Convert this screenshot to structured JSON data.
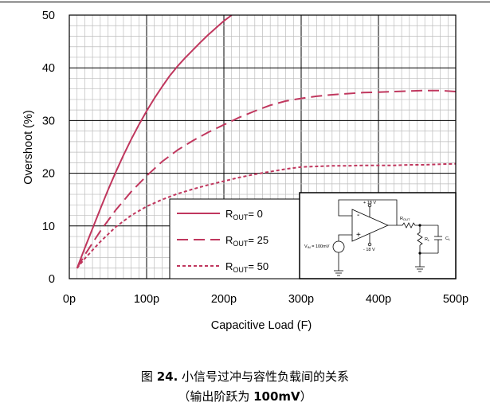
{
  "chart_data": {
    "type": "line",
    "xlabel": "Capacitive Load (F)",
    "ylabel": "Overshoot (%)",
    "xlim": [
      0,
      500
    ],
    "ylim": [
      0,
      50
    ],
    "x_ticks": [
      0,
      100,
      200,
      300,
      400,
      500
    ],
    "x_tick_labels": [
      "0p",
      "100p",
      "200p",
      "300p",
      "400p",
      "500p"
    ],
    "y_ticks": [
      0,
      10,
      20,
      30,
      40,
      50
    ],
    "y_tick_labels": [
      "0",
      "10",
      "20",
      "30",
      "40",
      "50"
    ],
    "grid": true,
    "legend_position": "bottom-center",
    "line_color": "#C0375E",
    "series": [
      {
        "name_main": "R",
        "name_sub": "OUT",
        "name_rest": "= 0",
        "style": "solid",
        "x": [
          10,
          20,
          30,
          40,
          50,
          60,
          70,
          80,
          90,
          100,
          110,
          120,
          130,
          140,
          150,
          160,
          170,
          180,
          190,
          200,
          210
        ],
        "y": [
          2,
          5.8,
          9.5,
          13.2,
          16.8,
          20.2,
          23.4,
          26.4,
          29.2,
          31.8,
          34.2,
          36.4,
          38.5,
          40.3,
          41.9,
          43.4,
          44.9,
          46.3,
          47.6,
          48.9,
          50
        ]
      },
      {
        "name_main": "R",
        "name_sub": "OUT",
        "name_rest": "= 25",
        "style": "dashed",
        "x": [
          10,
          20,
          40,
          60,
          80,
          100,
          120,
          140,
          160,
          180,
          200,
          220,
          240,
          260,
          280,
          300,
          320,
          340,
          360,
          380,
          400,
          420,
          440,
          460,
          480,
          500
        ],
        "y": [
          2,
          4.5,
          9,
          13,
          16.5,
          19.5,
          22.2,
          24.4,
          26.2,
          27.8,
          29.2,
          30.6,
          31.8,
          32.9,
          33.7,
          34.2,
          34.6,
          34.9,
          35.1,
          35.3,
          35.4,
          35.5,
          35.6,
          35.7,
          35.7,
          35.5
        ]
      },
      {
        "name_main": "R",
        "name_sub": "OUT",
        "name_rest": "= 50",
        "style": "dotted",
        "x": [
          10,
          20,
          40,
          60,
          80,
          100,
          120,
          140,
          160,
          180,
          200,
          220,
          240,
          260,
          280,
          300,
          320,
          340,
          360,
          380,
          400,
          420,
          440,
          460,
          480,
          500
        ],
        "y": [
          2,
          3.8,
          7,
          9.8,
          12,
          13.7,
          15,
          16.1,
          17,
          17.8,
          18.5,
          19.2,
          19.8,
          20.3,
          20.8,
          21.2,
          21.3,
          21.4,
          21.4,
          21.5,
          21.5,
          21.5,
          21.6,
          21.6,
          21.7,
          21.8
        ]
      }
    ]
  },
  "schematic": {
    "supply_pos": "+ 18 V",
    "supply_neg": "- 18 V",
    "vin": "V",
    "vin_sub": "IN",
    "vin_value": " = 100mV",
    "rout": "R",
    "rout_sub": "OUT",
    "rl": "R",
    "rl_sub": "L",
    "cl": "C",
    "cl_sub": "L",
    "minus": "-",
    "plus": "+"
  },
  "caption": {
    "fig_prefix": "图 ",
    "fig_number": "24.",
    "title": " 小信号过冲与容性负载间的关系",
    "sub_open": "（输出阶跃为 ",
    "sub_value": "100mV",
    "sub_close": "）"
  }
}
